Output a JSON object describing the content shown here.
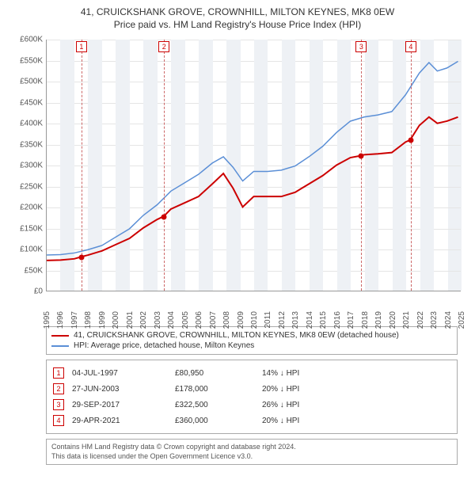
{
  "title_line1": "41, CRUICKSHANK GROVE, CROWNHILL, MILTON KEYNES, MK8 0EW",
  "title_line2": "Price paid vs. HM Land Registry's House Price Index (HPI)",
  "chart": {
    "type": "line",
    "background_color": "#ffffff",
    "grid_color": "#e5e5e5",
    "band_color": "#eef1f5",
    "axis_color": "#999999",
    "label_fontsize": 10,
    "xlim": [
      1995,
      2025
    ],
    "ylim": [
      0,
      600000
    ],
    "ytick_step": 50000,
    "yticks": [
      "£0",
      "£50K",
      "£100K",
      "£150K",
      "£200K",
      "£250K",
      "£300K",
      "£350K",
      "£400K",
      "£450K",
      "£500K",
      "£550K",
      "£600K"
    ],
    "xticks": [
      1995,
      1996,
      1997,
      1998,
      1999,
      2000,
      2001,
      2002,
      2003,
      2004,
      2005,
      2006,
      2007,
      2008,
      2009,
      2010,
      2011,
      2012,
      2013,
      2014,
      2015,
      2016,
      2017,
      2018,
      2019,
      2020,
      2021,
      2022,
      2023,
      2024,
      2025
    ],
    "series": [
      {
        "name": "property",
        "color": "#cc0000",
        "line_width": 2,
        "data": [
          [
            1995.0,
            72000
          ],
          [
            1996.0,
            73000
          ],
          [
            1997.0,
            76000
          ],
          [
            1997.5,
            80950
          ],
          [
            1998.0,
            85000
          ],
          [
            1999.0,
            95000
          ],
          [
            2000.0,
            110000
          ],
          [
            2001.0,
            125000
          ],
          [
            2002.0,
            150000
          ],
          [
            2003.0,
            170000
          ],
          [
            2003.49,
            178000
          ],
          [
            2004.0,
            195000
          ],
          [
            2005.0,
            210000
          ],
          [
            2006.0,
            225000
          ],
          [
            2007.0,
            255000
          ],
          [
            2007.8,
            280000
          ],
          [
            2008.5,
            245000
          ],
          [
            2009.2,
            200000
          ],
          [
            2010.0,
            225000
          ],
          [
            2011.0,
            225000
          ],
          [
            2012.0,
            225000
          ],
          [
            2013.0,
            235000
          ],
          [
            2014.0,
            255000
          ],
          [
            2015.0,
            275000
          ],
          [
            2016.0,
            300000
          ],
          [
            2017.0,
            318000
          ],
          [
            2017.75,
            322500
          ],
          [
            2018.0,
            325000
          ],
          [
            2019.0,
            327000
          ],
          [
            2020.0,
            330000
          ],
          [
            2021.0,
            355000
          ],
          [
            2021.33,
            360000
          ],
          [
            2022.0,
            395000
          ],
          [
            2022.7,
            415000
          ],
          [
            2023.3,
            400000
          ],
          [
            2024.0,
            405000
          ],
          [
            2024.8,
            415000
          ]
        ]
      },
      {
        "name": "hpi",
        "color": "#5b8fd6",
        "line_width": 1.5,
        "data": [
          [
            1995.0,
            85000
          ],
          [
            1996.0,
            86000
          ],
          [
            1997.0,
            90000
          ],
          [
            1998.0,
            98000
          ],
          [
            1999.0,
            108000
          ],
          [
            2000.0,
            128000
          ],
          [
            2001.0,
            148000
          ],
          [
            2002.0,
            180000
          ],
          [
            2003.0,
            205000
          ],
          [
            2004.0,
            238000
          ],
          [
            2005.0,
            258000
          ],
          [
            2006.0,
            278000
          ],
          [
            2007.0,
            305000
          ],
          [
            2007.8,
            320000
          ],
          [
            2008.5,
            295000
          ],
          [
            2009.2,
            262000
          ],
          [
            2010.0,
            285000
          ],
          [
            2011.0,
            285000
          ],
          [
            2012.0,
            288000
          ],
          [
            2013.0,
            298000
          ],
          [
            2014.0,
            320000
          ],
          [
            2015.0,
            345000
          ],
          [
            2016.0,
            378000
          ],
          [
            2017.0,
            405000
          ],
          [
            2018.0,
            415000
          ],
          [
            2019.0,
            420000
          ],
          [
            2020.0,
            428000
          ],
          [
            2021.0,
            468000
          ],
          [
            2022.0,
            520000
          ],
          [
            2022.7,
            545000
          ],
          [
            2023.3,
            525000
          ],
          [
            2024.0,
            532000
          ],
          [
            2024.8,
            548000
          ]
        ]
      }
    ],
    "sale_markers": [
      {
        "n": "1",
        "x": 1997.51,
        "y": 80950
      },
      {
        "n": "2",
        "x": 2003.49,
        "y": 178000
      },
      {
        "n": "3",
        "x": 2017.75,
        "y": 322500
      },
      {
        "n": "4",
        "x": 2021.33,
        "y": 360000
      }
    ],
    "dash_color": "#cc6666",
    "marker_border": "#cc0000"
  },
  "legend": {
    "items": [
      {
        "color": "#cc0000",
        "label": "41, CRUICKSHANK GROVE, CROWNHILL, MILTON KEYNES, MK8 0EW (detached house)"
      },
      {
        "color": "#5b8fd6",
        "label": "HPI: Average price, detached house, Milton Keynes"
      }
    ]
  },
  "sales": [
    {
      "n": "1",
      "date": "04-JUL-1997",
      "price": "£80,950",
      "diff": "14% ↓ HPI"
    },
    {
      "n": "2",
      "date": "27-JUN-2003",
      "price": "£178,000",
      "diff": "20% ↓ HPI"
    },
    {
      "n": "3",
      "date": "29-SEP-2017",
      "price": "£322,500",
      "diff": "26% ↓ HPI"
    },
    {
      "n": "4",
      "date": "29-APR-2021",
      "price": "£360,000",
      "diff": "20% ↓ HPI"
    }
  ],
  "footer": {
    "line1": "Contains HM Land Registry data © Crown copyright and database right 2024.",
    "line2": "This data is licensed under the Open Government Licence v3.0."
  }
}
